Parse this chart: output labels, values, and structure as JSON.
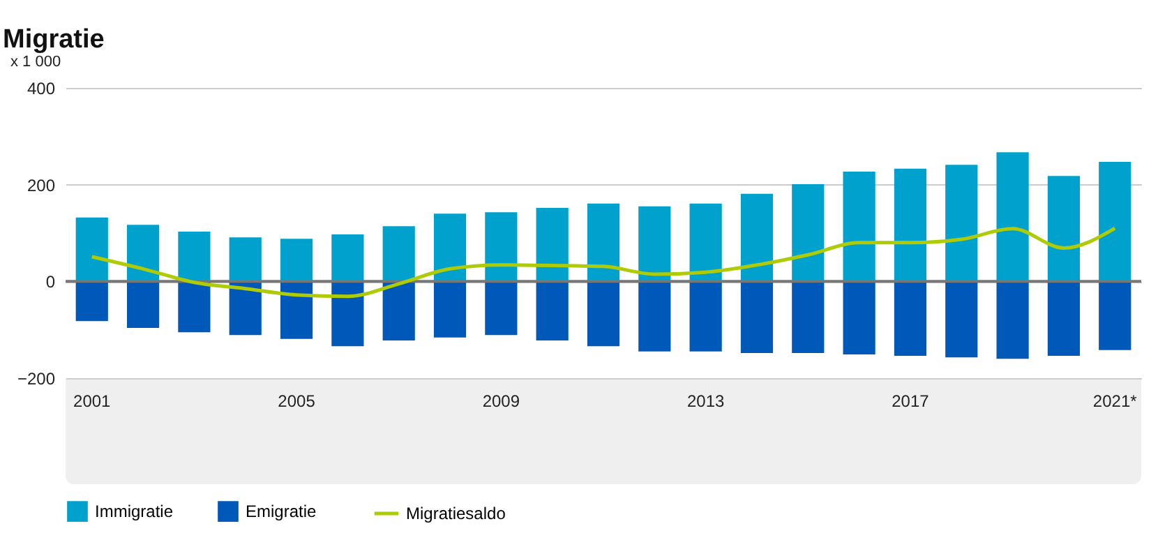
{
  "chart_data": {
    "type": "bar",
    "title": "Migratie",
    "ylabel": "x 1 000",
    "categories": [
      "2001",
      null,
      null,
      null,
      "2005",
      null,
      null,
      null,
      "2009",
      null,
      null,
      null,
      "2013",
      null,
      null,
      null,
      "2017",
      null,
      null,
      null,
      "2021*"
    ],
    "series": [
      {
        "name": "Immigratie",
        "color": "#00a1cd",
        "values": [
          132,
          117,
          103,
          91,
          88,
          97,
          114,
          140,
          143,
          152,
          161,
          155,
          161,
          181,
          201,
          227,
          233,
          241,
          267,
          218,
          247
        ]
      },
      {
        "name": "Emigratie",
        "color": "#0058b8",
        "values": [
          -82,
          -96,
          -105,
          -111,
          -119,
          -134,
          -122,
          -116,
          -111,
          -122,
          -134,
          -145,
          -145,
          -148,
          -148,
          -151,
          -154,
          -157,
          -160,
          -154,
          -142
        ]
      },
      {
        "name": "Migratiesaldo",
        "type": "line",
        "color": "#afcb05",
        "values": [
          51,
          26,
          -2,
          -15,
          -28,
          -31,
          -5,
          26,
          34,
          33,
          31,
          15,
          19,
          34,
          55,
          80,
          80,
          87,
          109,
          69,
          110
        ]
      }
    ],
    "stacked": true,
    "ylim": [
      -200,
      400
    ],
    "yticks": [
      -200,
      0,
      200,
      400
    ],
    "grid": "y",
    "legend": "bottom left",
    "ref_lines": [
      {
        "axis": "y",
        "value": 0,
        "color": "#777777"
      }
    ]
  }
}
